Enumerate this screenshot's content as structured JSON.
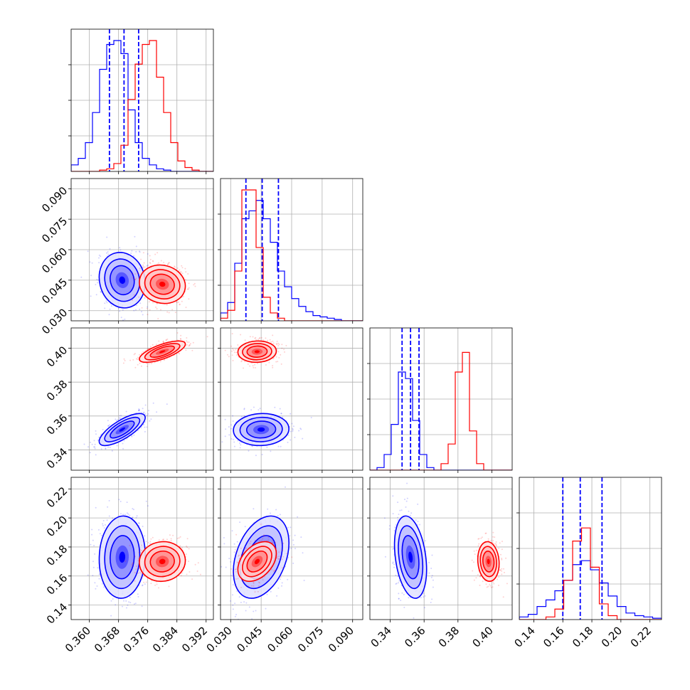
{
  "colors": {
    "series_a": "#0000ff",
    "series_b": "#ff0000",
    "grid": "#b0b0b0",
    "axes": "#000000"
  },
  "chart_data": {
    "type": "corner",
    "grid": true,
    "parameters": [
      {
        "range": [
          0.355,
          0.394
        ],
        "ticks": [
          "0.360",
          "0.368",
          "0.376",
          "0.384",
          "0.392"
        ],
        "tick_values": [
          0.36,
          0.368,
          0.376,
          0.384,
          0.392
        ]
      },
      {
        "range": [
          0.025,
          0.095
        ],
        "ticks": [
          "0.030",
          "0.045",
          "0.060",
          "0.075",
          "0.090"
        ],
        "tick_values": [
          0.03,
          0.045,
          0.06,
          0.075,
          0.09
        ]
      },
      {
        "range": [
          0.328,
          0.412
        ],
        "ticks": [
          "0.34",
          "0.36",
          "0.38",
          "0.40"
        ],
        "tick_values": [
          0.34,
          0.36,
          0.38,
          0.4
        ]
      },
      {
        "range": [
          0.13,
          0.228
        ],
        "ticks": [
          "0.14",
          "0.16",
          "0.18",
          "0.20",
          "0.22"
        ],
        "tick_values": [
          0.14,
          0.16,
          0.18,
          0.2,
          0.22
        ]
      }
    ],
    "series": [
      {
        "color": "#0000ff",
        "mean": [
          0.369,
          0.045,
          0.352,
          0.173
        ],
        "std": [
          0.003,
          0.0065,
          0.0045,
          0.0135
        ],
        "quantiles": [
          [
            0.3655,
            0.3695,
            0.3735
          ],
          [
            0.0375,
            0.0455,
            0.0535
          ],
          [
            0.347,
            0.352,
            0.357
          ],
          [
            0.16,
            0.172,
            0.187
          ]
        ],
        "correlations": [
          [
            0,
            1,
            -0.1
          ],
          [
            0,
            2,
            0.75
          ],
          [
            0,
            3,
            0.05
          ],
          [
            1,
            2,
            0.05
          ],
          [
            1,
            3,
            0.35
          ],
          [
            2,
            3,
            -0.3
          ]
        ],
        "hist": [
          [
            5,
            10,
            22,
            45,
            78,
            97,
            100,
            90,
            47,
            22,
            10,
            5,
            2,
            1,
            0,
            0,
            0,
            0,
            0,
            0
          ],
          [
            6,
            14,
            44,
            78,
            84,
            92,
            78,
            60,
            38,
            26,
            17,
            11,
            7,
            4,
            3,
            2,
            1,
            0,
            0,
            0
          ],
          [
            0,
            2,
            12,
            35,
            75,
            70,
            38,
            12,
            2,
            0,
            0,
            0,
            0,
            0,
            0,
            0,
            0,
            0,
            0,
            0
          ],
          [
            2,
            4,
            10,
            15,
            22,
            30,
            42,
            45,
            38,
            28,
            18,
            10,
            5,
            3,
            2,
            1
          ]
        ]
      },
      {
        "color": "#ff0000",
        "mean": [
          0.38,
          0.043,
          0.398,
          0.17
        ],
        "std": [
          0.003,
          0.0045,
          0.003,
          0.0065
        ],
        "quantiles": [],
        "correlations": [
          [
            0,
            1,
            -0.1
          ],
          [
            0,
            2,
            0.7
          ],
          [
            0,
            3,
            0.05
          ],
          [
            1,
            2,
            0.05
          ],
          [
            1,
            3,
            0.4
          ],
          [
            2,
            3,
            -0.1
          ]
        ],
        "hist": [
          [
            0,
            0,
            0,
            0,
            1,
            2,
            6,
            20,
            55,
            82,
            97,
            100,
            72,
            45,
            22,
            8,
            3,
            1,
            0,
            0
          ],
          [
            2,
            8,
            38,
            100,
            100,
            56,
            18,
            6,
            2,
            0,
            0,
            0,
            0,
            0,
            0,
            0,
            0,
            0,
            0,
            0
          ],
          [
            0,
            0,
            0,
            0,
            0,
            0,
            0,
            0,
            0,
            0,
            5,
            20,
            75,
            90,
            30,
            5,
            0,
            0,
            0,
            0
          ],
          [
            0,
            0,
            0,
            2,
            8,
            30,
            60,
            70,
            40,
            12,
            3,
            0,
            0,
            0,
            0,
            0
          ]
        ]
      }
    ]
  }
}
